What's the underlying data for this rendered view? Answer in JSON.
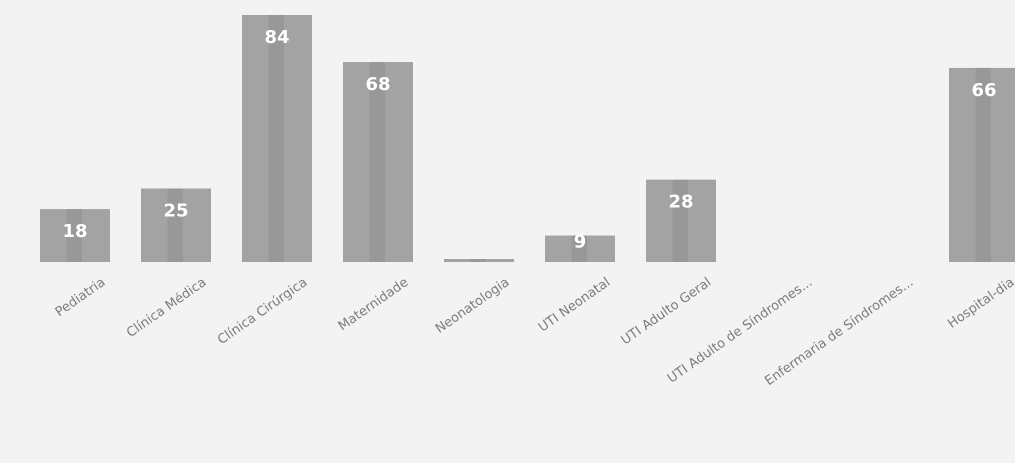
{
  "chart_data": {
    "type": "bar",
    "categories": [
      "Pediatria",
      "Clínica Médica",
      "Clínica Cirúrgica",
      "Maternidade",
      "Neonatologia",
      "UTI Neonatal",
      "UTI Adulto Geral",
      "UTI Adulto de Síndromes...",
      "Enfermaria de Síndromes...",
      "Hospital-dia"
    ],
    "values": [
      18,
      25,
      84,
      68,
      1,
      9,
      28,
      0,
      0,
      66
    ],
    "data_labels": [
      "18",
      "25",
      "84",
      "68",
      "",
      "9",
      "28",
      "",
      "",
      "66"
    ],
    "ylim": [
      0,
      84
    ],
    "grid": false,
    "legend": "none",
    "colors": {
      "bar": "#a3a3a3",
      "label": "#ffffff",
      "category": "#7c7c7c",
      "background": "#f3f3f3"
    }
  }
}
